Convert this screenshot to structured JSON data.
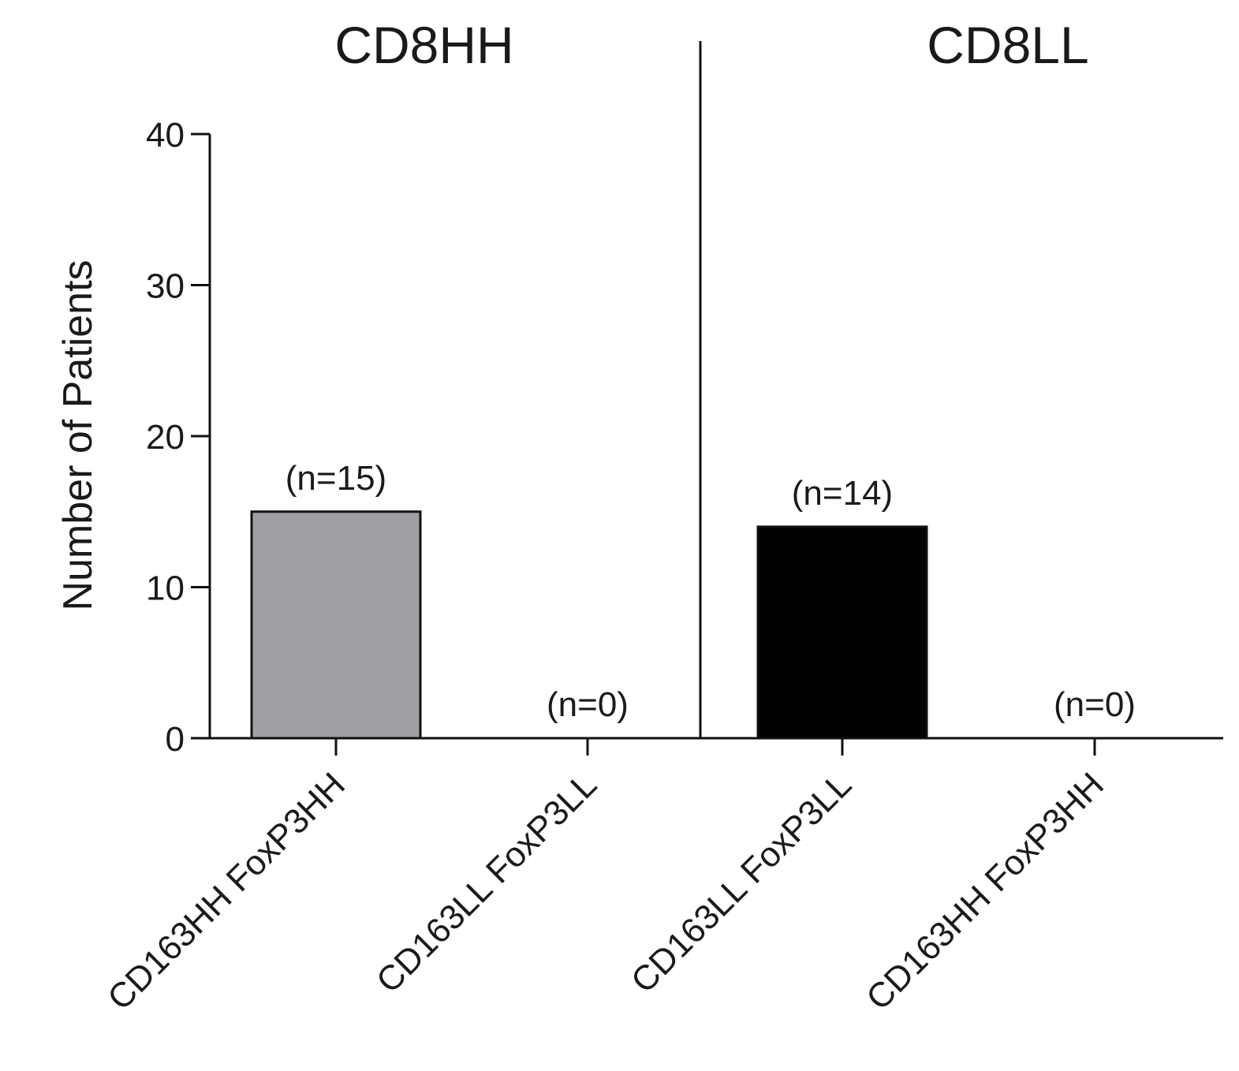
{
  "chart_data": {
    "type": "bar",
    "ylabel": "Number of Patients",
    "ylim": [
      0,
      40
    ],
    "yticks": [
      0,
      10,
      20,
      30,
      40
    ],
    "grid": false,
    "panels": [
      {
        "title": "CD8HH",
        "categories": [
          "CD163HH FoxP3HH",
          "CD163LL FoxP3LL"
        ],
        "values": [
          15,
          0
        ],
        "labels": [
          "(n=15)",
          "(n=0)"
        ],
        "color": "#a0a0a4"
      },
      {
        "title": "CD8LL",
        "categories": [
          "CD163LL FoxP3LL",
          "CD163HH FoxP3HH"
        ],
        "values": [
          14,
          0
        ],
        "labels": [
          "(n=14)",
          "(n=0)"
        ],
        "color": "#000000"
      }
    ]
  }
}
